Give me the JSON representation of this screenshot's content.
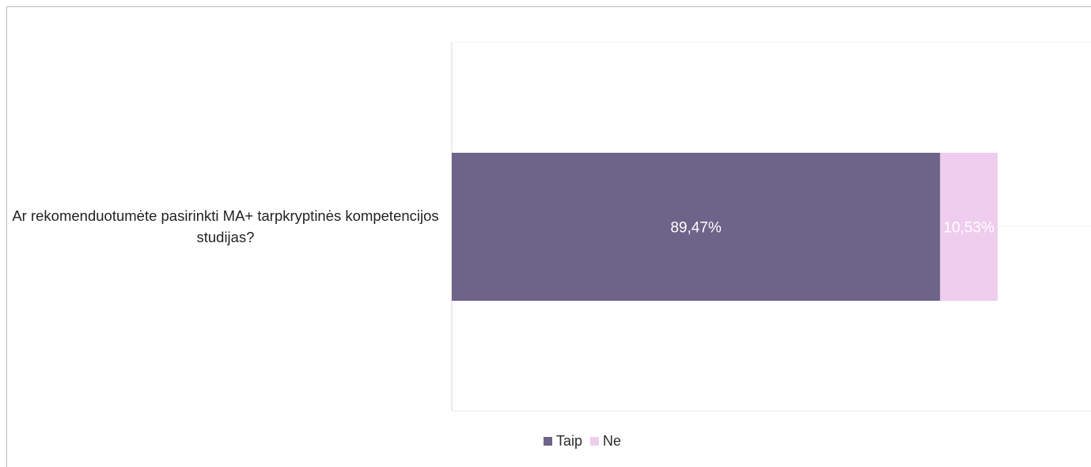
{
  "chart_data": {
    "type": "bar",
    "orientation": "horizontal",
    "stacked": true,
    "categories": [
      "Ar rekomenduotumėte pasirinkti MA+ tarpkryptinės kompetencijos studijas?"
    ],
    "series": [
      {
        "name": "Taip",
        "values": [
          89.47
        ],
        "label": "89,47%",
        "color": "#6e6389",
        "label_color": "#ffffff"
      },
      {
        "name": "Ne",
        "values": [
          10.53
        ],
        "label": "10,53%",
        "color": "#efcdee",
        "label_color": "#ffffff"
      }
    ],
    "legend_position": "bottom"
  }
}
